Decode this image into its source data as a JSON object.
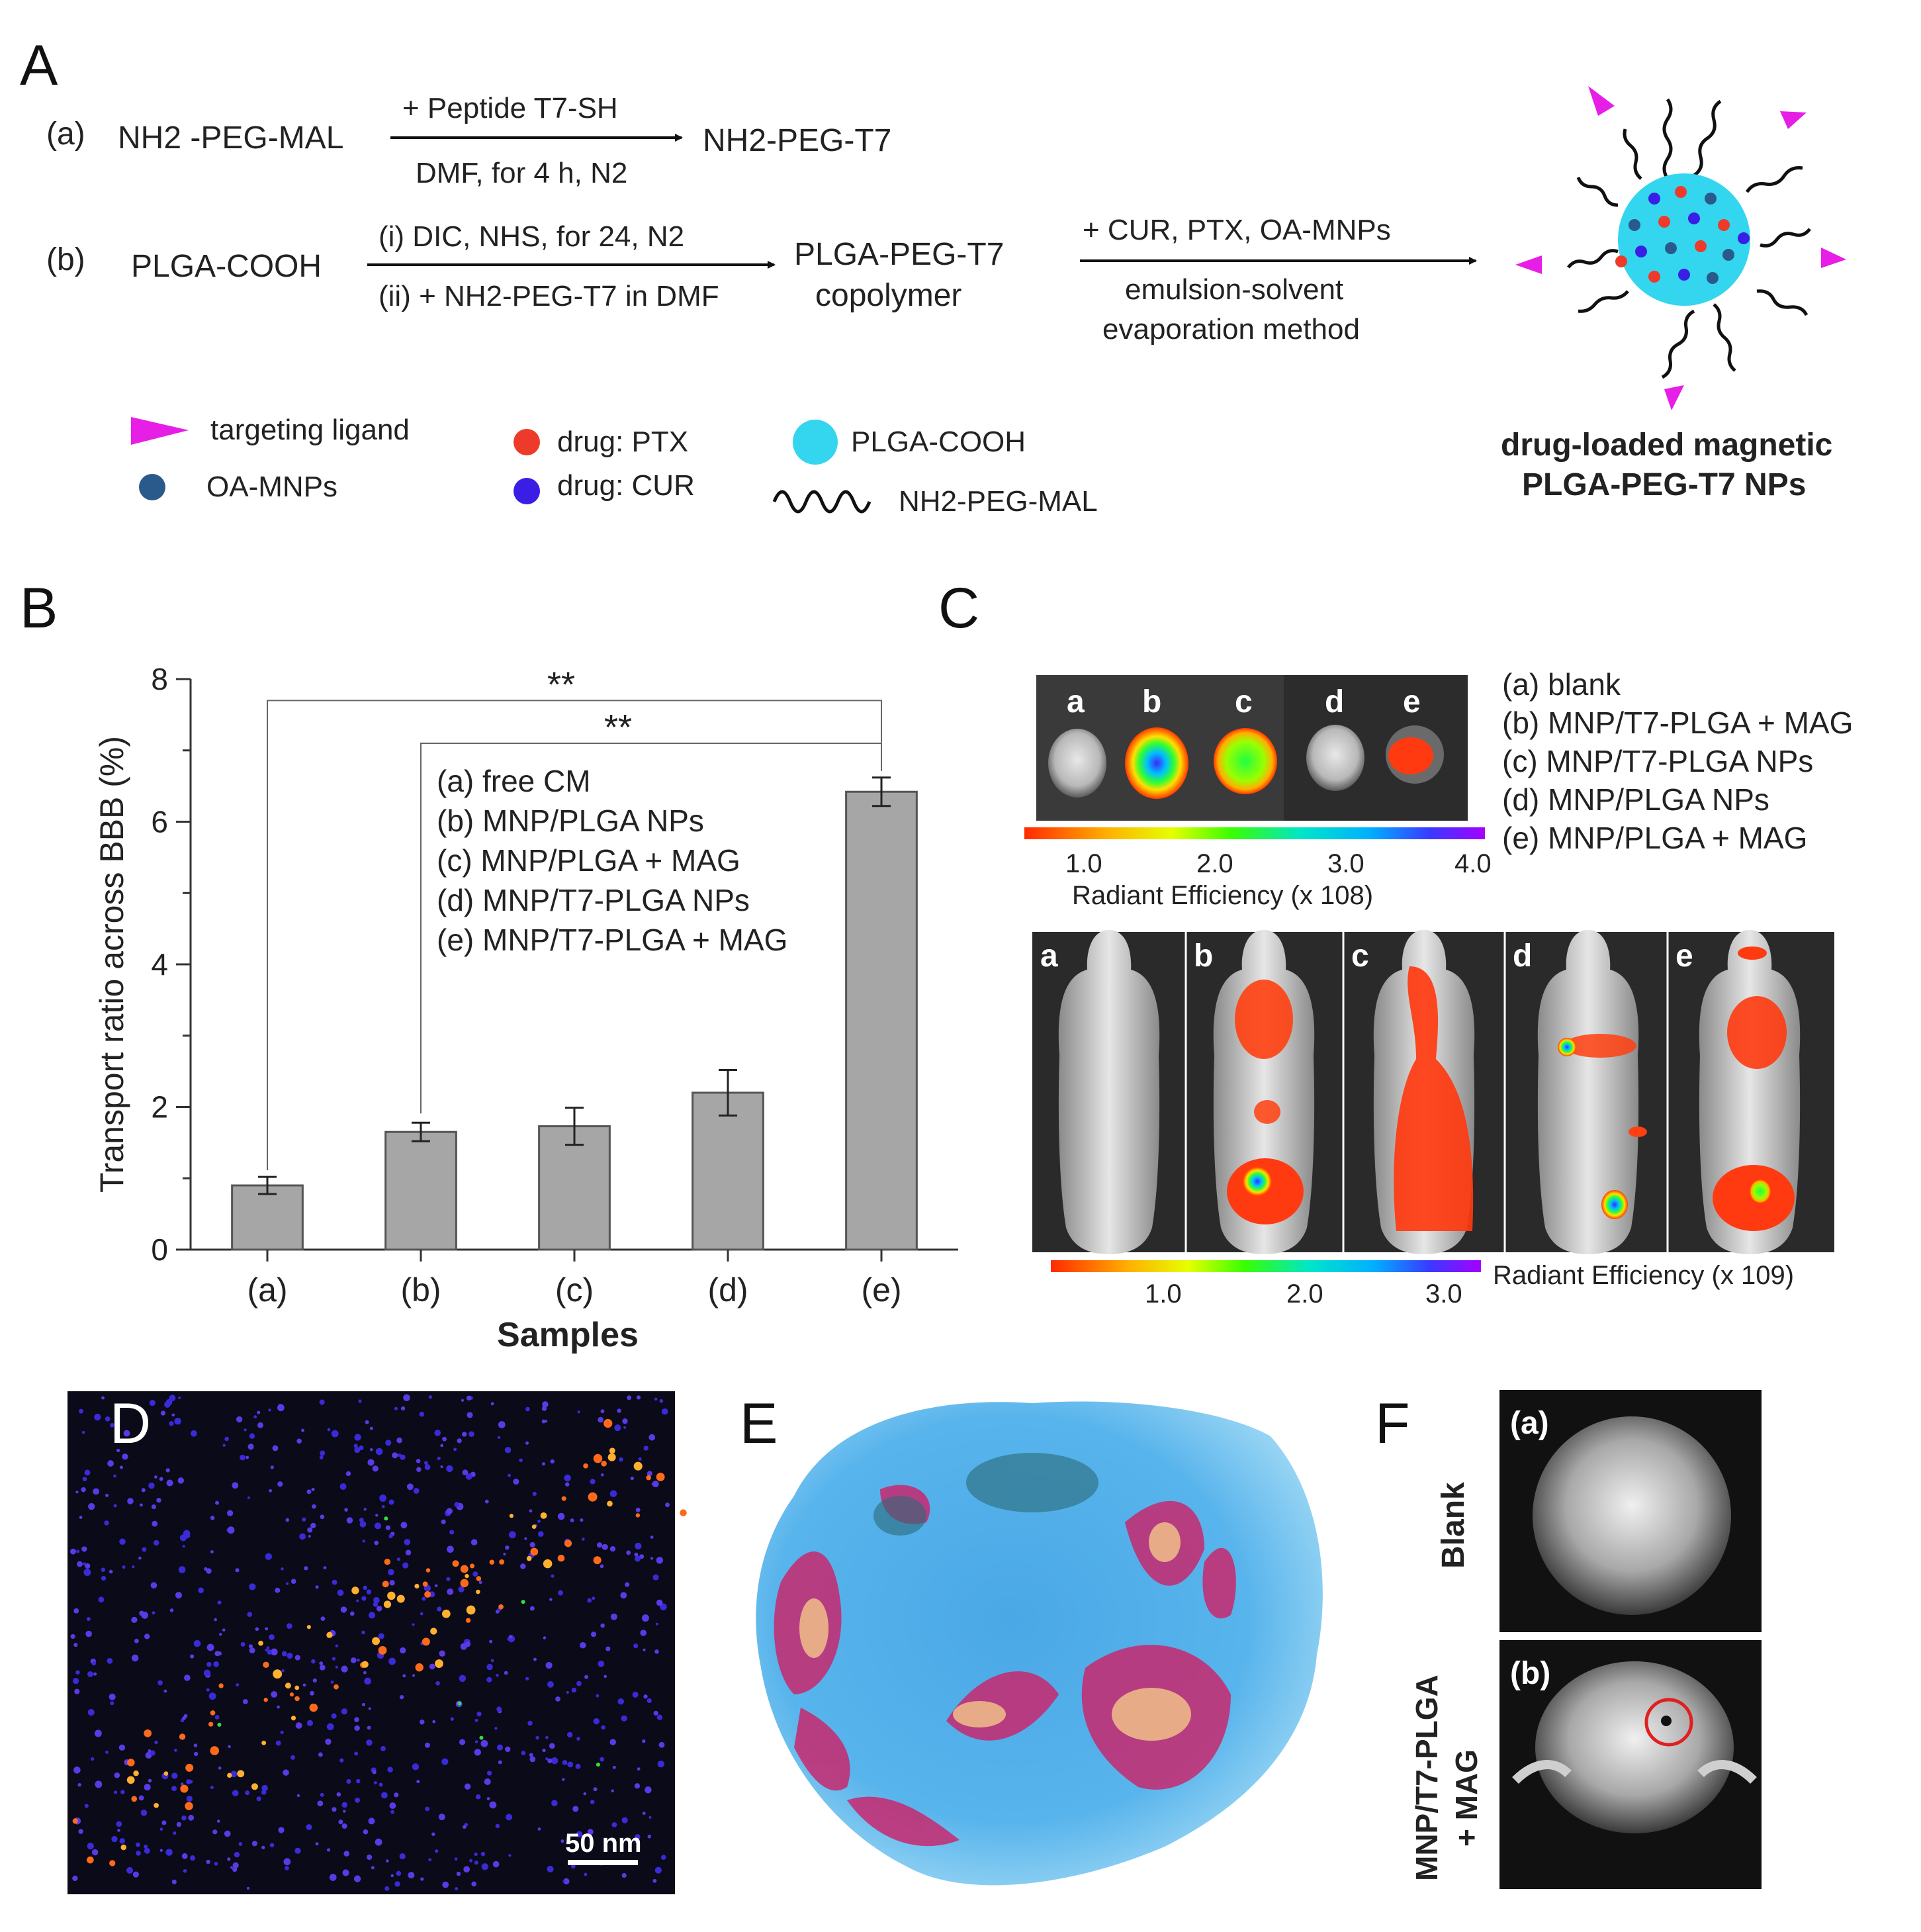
{
  "panel_A": {
    "letter": "A",
    "reaction_a": {
      "label": "(a)",
      "reactant": "NH2 -PEG-MAL",
      "reagent_above": "+ Peptide  T7-SH",
      "conditions_below": "DMF, for 4 h, N2",
      "product": "NH2-PEG-T7"
    },
    "reaction_b": {
      "label": "(b)",
      "reactant": "PLGA-COOH",
      "conditions_above": "(i) DIC, NHS, for 24, N2",
      "conditions_below": "(ii) + NH2-PEG-T7 in DMF",
      "product_line1": "PLGA-PEG-T7",
      "product_line2": "copolymer",
      "step2_above": "+ CUR, PTX, OA-MNPs",
      "step2_below_line1": "emulsion-solvent",
      "step2_below_line2": "evaporation method"
    },
    "legend": {
      "targeting_ligand": "targeting ligand",
      "oa_mnps": "OA-MNPs",
      "drug_ptx": "drug: PTX",
      "drug_cur": "drug: CUR",
      "plga_cooh": "PLGA-COOH",
      "peg_mal": "NH2-PEG-MAL"
    },
    "nanoparticle_caption_line1": "drug-loaded magnetic",
    "nanoparticle_caption_line2": "PLGA-PEG-T7 NPs",
    "colors": {
      "ligand": "#e61ee6",
      "sphere": "#33d6ee",
      "ptx": "#ee3a2a",
      "cur": "#3a1ee6",
      "mnp": "#2a5a8c"
    }
  },
  "panel_B": {
    "letter": "B",
    "significance": [
      "**",
      "**"
    ]
  },
  "chart_data": {
    "type": "bar",
    "categories": [
      "(a)",
      "(b)",
      "(c)",
      "(d)",
      "(e)"
    ],
    "values": [
      0.9,
      1.65,
      1.73,
      2.2,
      6.42
    ],
    "errors": [
      0.12,
      0.13,
      0.26,
      0.32,
      0.2
    ],
    "xlabel": "Samples",
    "ylabel": "Transport ratio across BBB (%)",
    "ylim": [
      0,
      8
    ],
    "yticks": [
      "0",
      "2",
      "4",
      "6",
      "8"
    ],
    "legend": [
      "(a) free CM",
      "(b) MNP/PLGA NPs",
      "(c) MNP/PLGA + MAG",
      "(d) MNP/T7-PLGA NPs",
      "(e) MNP/T7-PLGA + MAG"
    ],
    "bar_color": "#a6a6a6",
    "grid": false
  },
  "panel_C": {
    "letter": "C",
    "dish_labels": [
      "a",
      "b",
      "c",
      "d",
      "e"
    ],
    "legend": [
      "(a) blank",
      "(b) MNP/T7-PLGA + MAG",
      "(c) MNP/T7-PLGA NPs",
      "(d) MNP/PLGA NPs",
      "(e) MNP/PLGA + MAG"
    ],
    "scale1_ticks": [
      "1.0",
      "2.0",
      "3.0",
      "4.0"
    ],
    "scale1_label": "Radiant Efficiency (x 108)",
    "mouse_labels": [
      "a",
      "b",
      "c",
      "d",
      "e"
    ],
    "scale2_ticks": [
      "1.0",
      "2.0",
      "3.0"
    ],
    "scale2_label": "Radiant Efficiency (x 109)"
  },
  "panel_D": {
    "letter": "D",
    "scalebar": "50 nm"
  },
  "panel_E": {
    "letter": "E"
  },
  "panel_F": {
    "letter": "F",
    "row_a_label": "(a)",
    "row_a_side": "Blank",
    "row_b_label": "(b)",
    "row_b_side_line1": "MNP/T7-PLGA",
    "row_b_side_line2": "+ MAG"
  }
}
